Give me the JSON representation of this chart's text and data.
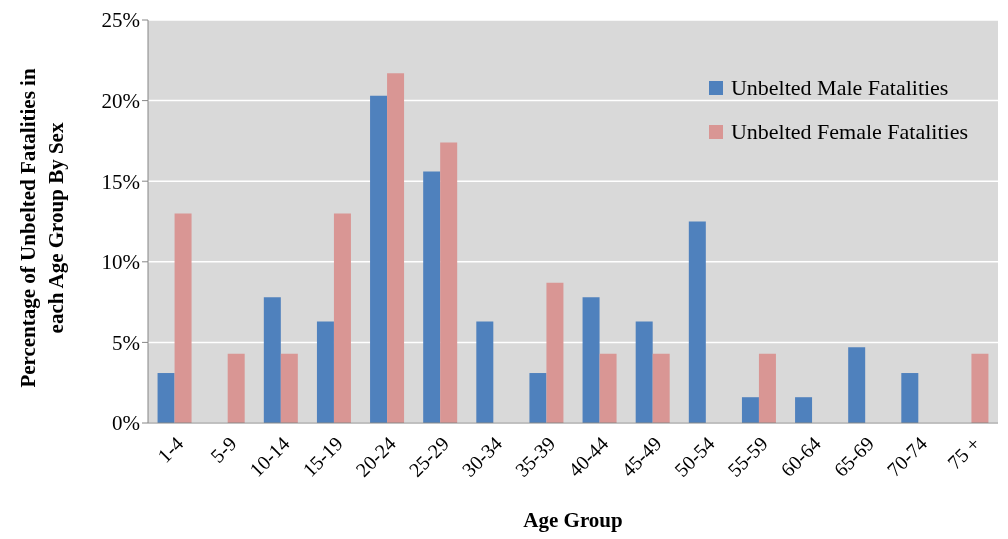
{
  "chart_data": {
    "type": "bar",
    "xlabel": "Age Group",
    "ylabel": "Percentage of  Unbelted Fatalities in each Age Group By Sex",
    "categories": [
      "1-4",
      "5-9",
      "10-14",
      "15-19",
      "20-24",
      "25-29",
      "30-34",
      "35-39",
      "40-44",
      "45-49",
      "50-54",
      "55-59",
      "60-64",
      "65-69",
      "70-74",
      "75 +"
    ],
    "series": [
      {
        "name": "Unbelted Male Fatalities",
        "color": "#4f81bd",
        "values": [
          3.1,
          0,
          7.8,
          6.3,
          20.3,
          15.6,
          6.3,
          3.1,
          7.8,
          6.3,
          12.5,
          1.6,
          1.6,
          4.7,
          3.1,
          0
        ]
      },
      {
        "name": "Unbelted Female Fatalities",
        "color": "#d99694",
        "values": [
          13.0,
          4.3,
          4.3,
          13.0,
          21.7,
          17.4,
          0,
          8.7,
          4.3,
          4.3,
          0,
          4.3,
          0,
          0,
          0,
          4.3
        ]
      }
    ],
    "ylim": [
      0,
      25
    ],
    "yticks": [
      {
        "value": 0,
        "label": "0%"
      },
      {
        "value": 5,
        "label": "5%"
      },
      {
        "value": 10,
        "label": "10%"
      },
      {
        "value": 15,
        "label": "15%"
      },
      {
        "value": 20,
        "label": "20%"
      },
      {
        "value": 25,
        "label": "25%"
      }
    ],
    "grid": "y",
    "legend": "top right"
  }
}
